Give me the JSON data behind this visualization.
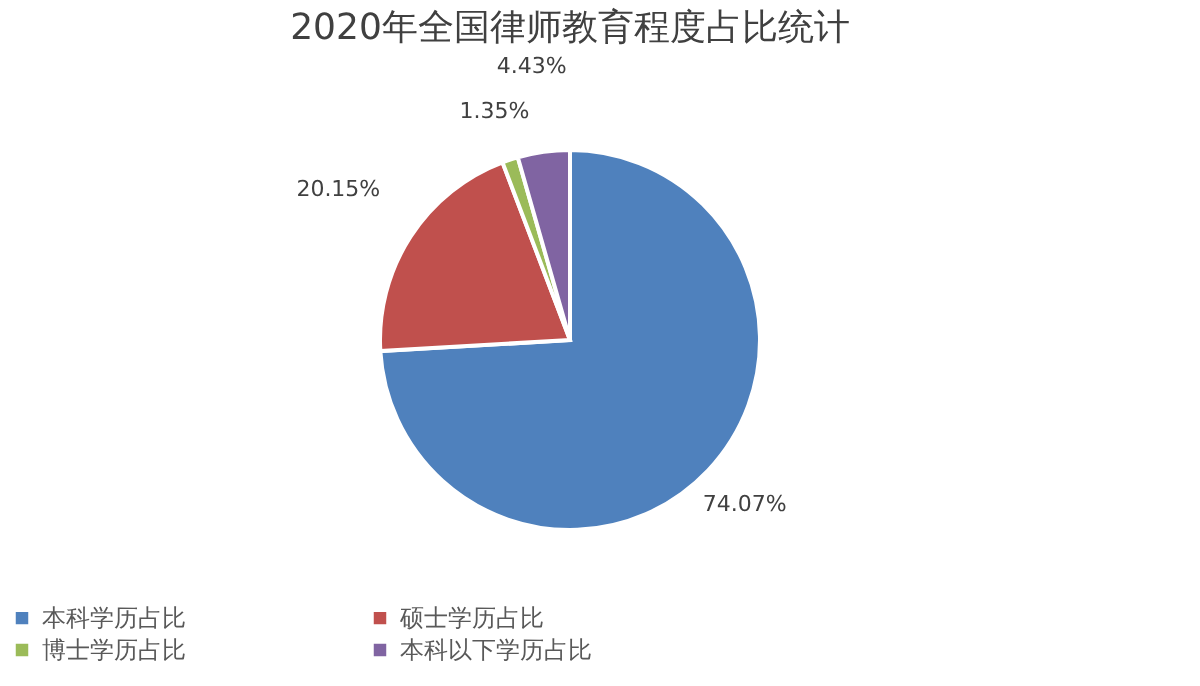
{
  "chart_data": {
    "type": "pie",
    "title": "2020年全国律师教育程度占比统计",
    "categories": [
      "本科学历占比",
      "硕士学历占比",
      "博士学历占比",
      "本科以下学历占比"
    ],
    "values": [
      74.07,
      20.15,
      1.35,
      4.43
    ],
    "value_labels": [
      "74.07%",
      "20.15%",
      "1.35%",
      "4.43%"
    ],
    "colors": [
      "#4f81bd",
      "#c0504d",
      "#9bbb59",
      "#8064a2"
    ],
    "legend": "bottom"
  }
}
